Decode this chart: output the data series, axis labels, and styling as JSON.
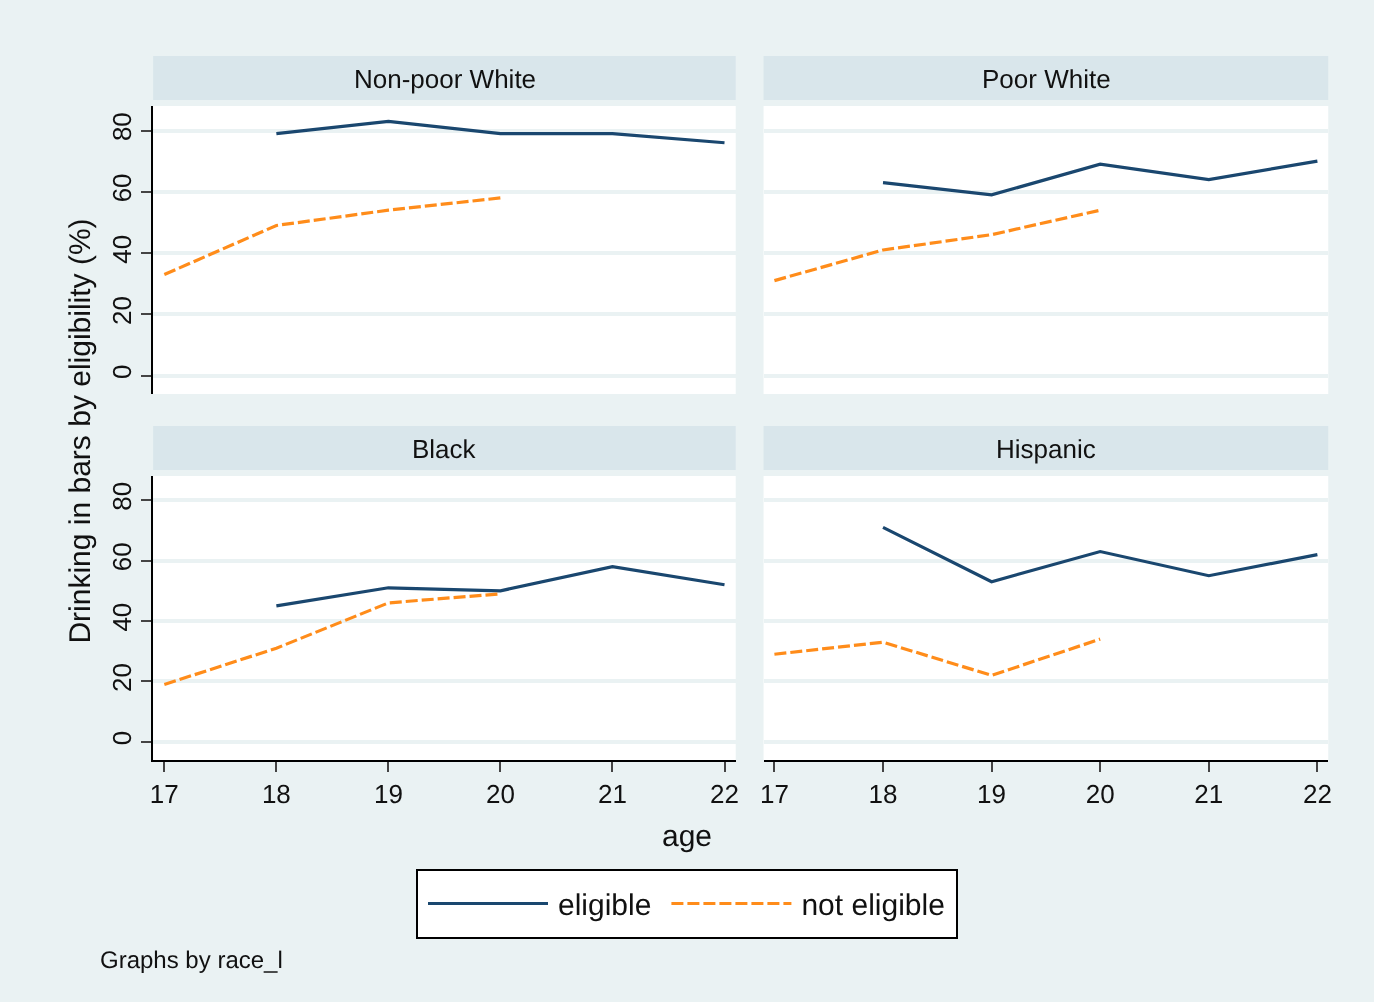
{
  "chart_data": [
    {
      "type": "line",
      "title": "Non-poor White",
      "ylabel": "Drinking in bars by eligibility (%)",
      "legend": "bottom",
      "grid": "y",
      "tick_labels": "y",
      "xlim": [
        16.9,
        22.1
      ],
      "xticks": [
        17,
        18,
        19,
        20,
        21,
        22
      ],
      "ylim": [
        -6,
        88
      ],
      "yticks": [
        0,
        20,
        40,
        60,
        80
      ],
      "series": [
        {
          "name": "eligible",
          "color": "#1a476f",
          "line_style": "solid",
          "x": [
            18,
            19,
            20,
            21,
            22
          ],
          "values": [
            79,
            83,
            79,
            79,
            76
          ]
        },
        {
          "name": "not eligible",
          "color": "#ff8c1a",
          "line_style": "dashed",
          "x": [
            17,
            18,
            19,
            20
          ],
          "values": [
            33,
            49,
            54,
            58
          ]
        }
      ]
    },
    {
      "type": "line",
      "title": "Poor White",
      "grid": "y",
      "tick_labels": false,
      "xlim": [
        16.9,
        22.1
      ],
      "xticks": [
        17,
        18,
        19,
        20,
        21,
        22
      ],
      "ylim": [
        -6,
        88
      ],
      "yticks": [
        0,
        20,
        40,
        60,
        80
      ],
      "series": [
        {
          "color": "#1a476f",
          "line_style": "solid",
          "x": [
            18,
            19,
            20,
            21,
            22
          ],
          "values": [
            63,
            59,
            69,
            64,
            70
          ]
        },
        {
          "color": "#ff8c1a",
          "line_style": "dashed",
          "x": [
            17,
            18,
            19,
            20
          ],
          "values": [
            31,
            41,
            46,
            54
          ]
        }
      ]
    },
    {
      "type": "line",
      "title": "Black",
      "xlabel": "age",
      "grid": "y",
      "xlim": [
        16.9,
        22.1
      ],
      "xticks": [
        17,
        18,
        19,
        20,
        21,
        22
      ],
      "ylim": [
        -6,
        88
      ],
      "yticks": [
        0,
        20,
        40,
        60,
        80
      ],
      "series": [
        {
          "color": "#1a476f",
          "line_style": "solid",
          "x": [
            18,
            19,
            20,
            21,
            22
          ],
          "values": [
            45,
            51,
            50,
            58,
            52
          ]
        },
        {
          "color": "#ff8c1a",
          "line_style": "dashed",
          "x": [
            17,
            18,
            19,
            20
          ],
          "values": [
            19,
            31,
            46,
            49
          ]
        }
      ]
    },
    {
      "type": "line",
      "title": "Hispanic",
      "grid": "y",
      "tick_labels": "x",
      "annotations": [
        "Graphs by race_l"
      ],
      "xlim": [
        16.9,
        22.1
      ],
      "xticks": [
        17,
        18,
        19,
        20,
        21,
        22
      ],
      "ylim": [
        -6,
        88
      ],
      "yticks": [
        0,
        20,
        40,
        60,
        80
      ],
      "series": [
        {
          "color": "#1a476f",
          "line_style": "solid",
          "x": [
            18,
            19,
            20,
            21,
            22
          ],
          "values": [
            71,
            53,
            63,
            55,
            62
          ]
        },
        {
          "color": "#ff8c1a",
          "line_style": "dashed",
          "x": [
            17,
            18,
            19,
            20
          ],
          "values": [
            29,
            33,
            22,
            34
          ]
        }
      ]
    }
  ]
}
